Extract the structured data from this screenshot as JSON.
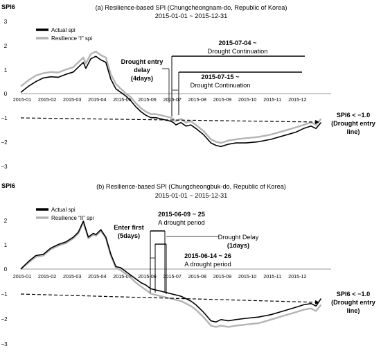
{
  "chart_data": [
    {
      "type": "line",
      "id": "a",
      "title": "(a) Resilience-based SPI (Chungcheongnam-do, Republic of Korea)",
      "subtitle": "2015-01-01 ~ 2015-12-31",
      "ylabel": "SPI6",
      "ylim": [
        -3,
        3
      ],
      "yticks": [
        "3",
        "2",
        "1",
        "0",
        "−1",
        "−2",
        "−3"
      ],
      "xticks": [
        "2015-01",
        "2015-02",
        "2015-03",
        "2015-04",
        "2015-05",
        "2015-06",
        "2015-07",
        "2015-08",
        "2015-09",
        "2015-10",
        "2015-11",
        "2015-12"
      ],
      "legend": [
        {
          "name": "Actual spi",
          "color": "#000000"
        },
        {
          "name": "Resilience “I” spi",
          "color": "#b4b4b4"
        }
      ],
      "series": [
        {
          "name": "Actual spi",
          "color": "#000000",
          "x": [
            0,
            0.3,
            0.6,
            0.9,
            1.2,
            1.5,
            1.8,
            2.1,
            2.3,
            2.5,
            2.6,
            2.8,
            3.0,
            3.2,
            3.4,
            3.6,
            3.8,
            4.0,
            4.2,
            4.4,
            4.6,
            4.8,
            5.0,
            5.2,
            5.4,
            5.6,
            5.8,
            6.0,
            6.1,
            6.2,
            6.4,
            6.6,
            6.8,
            7.0,
            7.3,
            7.6,
            7.8,
            8.0,
            8.3,
            8.6,
            9.0,
            9.5,
            10.0,
            10.5,
            11.0,
            11.3,
            11.6,
            11.8,
            12.0
          ],
          "values": [
            0.05,
            0.3,
            0.5,
            0.65,
            0.7,
            0.68,
            0.8,
            0.9,
            1.1,
            1.3,
            1.05,
            1.45,
            1.55,
            1.4,
            1.3,
            0.6,
            0.2,
            0.05,
            -0.1,
            -0.3,
            -0.55,
            -0.75,
            -0.9,
            -1.0,
            -1.0,
            -1.05,
            -1.1,
            -1.15,
            -1.2,
            -1.3,
            -1.2,
            -1.35,
            -1.3,
            -1.45,
            -1.7,
            -2.05,
            -2.15,
            -2.2,
            -2.1,
            -2.05,
            -2.05,
            -2.0,
            -1.9,
            -1.75,
            -1.6,
            -1.45,
            -1.35,
            -1.45,
            -1.2
          ]
        },
        {
          "name": "Resilience “I” spi",
          "color": "#b4b4b4",
          "x": [
            0,
            0.3,
            0.6,
            0.9,
            1.2,
            1.5,
            1.8,
            2.1,
            2.3,
            2.5,
            2.6,
            2.8,
            3.0,
            3.2,
            3.4,
            3.6,
            3.8,
            4.0,
            4.2,
            4.4,
            4.6,
            4.8,
            5.0,
            5.2,
            5.4,
            5.6,
            5.8,
            6.0,
            6.1,
            6.2,
            6.4,
            6.6,
            6.8,
            7.0,
            7.3,
            7.6,
            7.8,
            8.0,
            8.3,
            8.6,
            9.0,
            9.5,
            10.0,
            10.5,
            11.0,
            11.3,
            11.6,
            11.8,
            12.0
          ],
          "values": [
            0.3,
            0.55,
            0.75,
            0.85,
            0.9,
            0.88,
            1.0,
            1.1,
            1.3,
            1.5,
            1.25,
            1.65,
            1.75,
            1.6,
            1.5,
            0.8,
            0.4,
            0.2,
            0.0,
            -0.15,
            -0.4,
            -0.6,
            -0.75,
            -0.85,
            -0.85,
            -0.9,
            -0.95,
            -1.0,
            -1.05,
            -1.15,
            -1.05,
            -1.2,
            -1.15,
            -1.3,
            -1.55,
            -1.9,
            -2.0,
            -2.05,
            -1.95,
            -1.9,
            -1.85,
            -1.8,
            -1.7,
            -1.55,
            -1.4,
            -1.3,
            -1.2,
            -1.3,
            -1.05
          ]
        }
      ],
      "threshold": {
        "value": -1.0,
        "label": "SPI6 < −1.0",
        "label2": "(Drought entry",
        "label3": "line)"
      },
      "annotations": {
        "delay_title": "Drought entry",
        "delay_title2": "delay",
        "delay_days": "(4days)",
        "continuation_1_date": "2015-07-04 ~",
        "continuation_1_text": "Drought Continuation",
        "continuation_2_date": "2015-07-15 ~",
        "continuation_2_text": "Drought Continuation"
      }
    },
    {
      "type": "line",
      "id": "b",
      "title": "(b) Resilience-based SPI (Chungcheongbuk-do, Republic of Korea)",
      "subtitle": "2015-01-01 ~ 2015-12-31",
      "ylabel": "SPI6",
      "ylim": [
        -3,
        3
      ],
      "yticks": [
        "2",
        "1",
        "0",
        "−1",
        "−2",
        "−3"
      ],
      "xticks": [
        "2015-01",
        "2015-02",
        "2015-03",
        "2015-04",
        "2015-05",
        "2015-06",
        "2015-07",
        "2015-08",
        "2015-09",
        "2015-10",
        "2015-11",
        "2015-12"
      ],
      "legend": [
        {
          "name": "Actual spi",
          "color": "#000000"
        },
        {
          "name": "Resilience “II” spi",
          "color": "#b4b4b4"
        }
      ],
      "series": [
        {
          "name": "Actual spi",
          "color": "#000000",
          "x": [
            0,
            0.3,
            0.6,
            0.9,
            1.2,
            1.5,
            1.8,
            2.1,
            2.3,
            2.5,
            2.7,
            2.9,
            3.0,
            3.2,
            3.4,
            3.6,
            3.8,
            4.0,
            4.2,
            4.4,
            4.6,
            4.8,
            5.0,
            5.2,
            5.4,
            5.6,
            5.8,
            6.0,
            6.2,
            6.4,
            6.6,
            6.8,
            7.0,
            7.3,
            7.6,
            7.8,
            8.0,
            8.3,
            8.6,
            9.0,
            9.5,
            10.0,
            10.5,
            11.0,
            11.3,
            11.6,
            11.8,
            12.0
          ],
          "values": [
            0.0,
            0.3,
            0.55,
            0.6,
            0.85,
            1.0,
            1.1,
            1.3,
            1.5,
            1.95,
            1.3,
            1.45,
            1.4,
            1.6,
            1.3,
            0.6,
            0.1,
            0.05,
            -0.1,
            -0.25,
            -0.4,
            -0.55,
            -0.65,
            -0.8,
            -0.85,
            -0.9,
            -0.95,
            -1.0,
            -1.05,
            -1.1,
            -1.2,
            -1.3,
            -1.45,
            -1.75,
            -2.1,
            -2.15,
            -2.05,
            -2.1,
            -2.05,
            -2.0,
            -1.95,
            -1.85,
            -1.7,
            -1.55,
            -1.45,
            -1.4,
            -1.5,
            -1.2
          ]
        },
        {
          "name": "Resilience “II” spi",
          "color": "#b4b4b4",
          "x": [
            0,
            0.3,
            0.6,
            0.9,
            1.2,
            1.5,
            1.8,
            2.1,
            2.3,
            2.5,
            2.7,
            2.9,
            3.0,
            3.2,
            3.4,
            3.6,
            3.8,
            4.0,
            4.2,
            4.4,
            4.6,
            4.8,
            5.0,
            5.2,
            5.4,
            5.6,
            5.8,
            6.0,
            6.2,
            6.4,
            6.6,
            6.8,
            7.0,
            7.3,
            7.6,
            7.8,
            8.0,
            8.3,
            8.6,
            9.0,
            9.5,
            10.0,
            10.5,
            11.0,
            11.3,
            11.6,
            11.8,
            12.0
          ],
          "values": [
            0.0,
            0.25,
            0.5,
            0.55,
            0.8,
            0.95,
            1.05,
            1.25,
            1.45,
            1.9,
            1.25,
            1.4,
            1.35,
            1.55,
            1.25,
            0.55,
            0.05,
            -0.05,
            -0.2,
            -0.35,
            -0.55,
            -0.7,
            -0.85,
            -1.0,
            -1.05,
            -1.1,
            -1.15,
            -1.2,
            -1.25,
            -1.3,
            -1.4,
            -1.5,
            -1.65,
            -1.95,
            -2.3,
            -2.35,
            -2.3,
            -2.35,
            -2.3,
            -2.25,
            -2.2,
            -2.05,
            -1.9,
            -1.75,
            -1.65,
            -1.6,
            -1.7,
            -1.45
          ]
        }
      ],
      "threshold": {
        "value": -1.0,
        "label": "SPI6 < −1.0",
        "label2": "(Drought entry",
        "label3": "line)"
      },
      "annotations": {
        "enter_first": "Enter first",
        "enter_first_days": "(5days)",
        "period_1_date": "2015-06-09 ~ 25",
        "period_1_text": "A drought period",
        "delay_text": "Drought Delay",
        "delay_days": "(1days)",
        "period_2_date": "2015-06-14 ~ 26",
        "period_2_text": "A drought period"
      }
    }
  ]
}
